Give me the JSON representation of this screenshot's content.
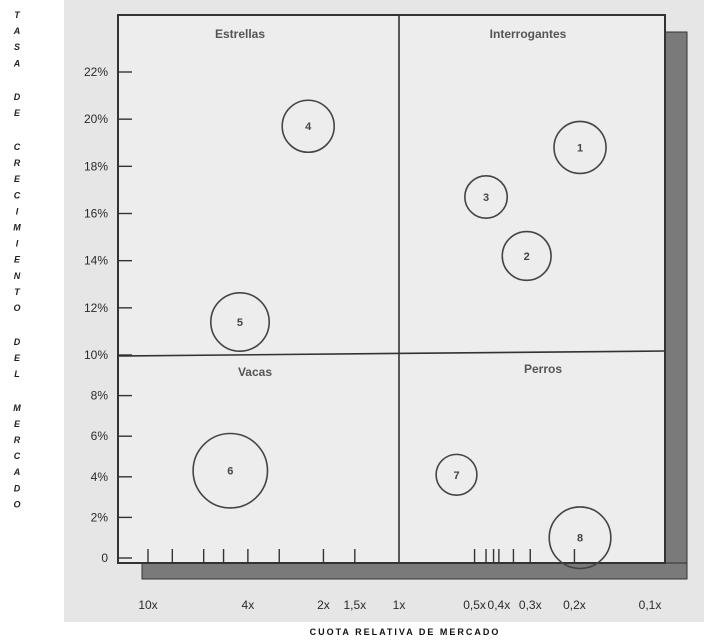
{
  "chart_data": {
    "type": "scatter",
    "title": "",
    "ylabel": "TASA DE CRECIMIENTO DEL MERCADO",
    "xlabel": "CUOTA RELATIVA DE MERCADO",
    "y_ticks": [
      {
        "value": 0,
        "label": "0"
      },
      {
        "value": 2,
        "label": "2%"
      },
      {
        "value": 4,
        "label": "4%"
      },
      {
        "value": 6,
        "label": "6%"
      },
      {
        "value": 8,
        "label": "8%"
      },
      {
        "value": 10,
        "label": "10%"
      },
      {
        "value": 12,
        "label": "12%"
      },
      {
        "value": 14,
        "label": "14%"
      },
      {
        "value": 16,
        "label": "16%"
      },
      {
        "value": 18,
        "label": "18%"
      },
      {
        "value": 20,
        "label": "20%"
      },
      {
        "value": 22,
        "label": "22%"
      }
    ],
    "x_scale": "log-reversed",
    "xlim": [
      0.075,
      12
    ],
    "x_ticks": [
      {
        "value": 10,
        "label": "10x"
      },
      {
        "value": 4,
        "label": "4x"
      },
      {
        "value": 2,
        "label": "2x"
      },
      {
        "value": 1.5,
        "label": "1,5x"
      },
      {
        "value": 1,
        "label": "1x"
      },
      {
        "value": 0.5,
        "label": "0,5x"
      },
      {
        "value": 0.4,
        "label": "0,4x"
      },
      {
        "value": 0.3,
        "label": "0,3x"
      },
      {
        "value": 0.2,
        "label": "0,2x"
      },
      {
        "value": 0.1,
        "label": "0,1x"
      }
    ],
    "x_minor_ticks": [
      10,
      8,
      6,
      5,
      4,
      3,
      2,
      1.5,
      0.5,
      0.45,
      0.42,
      0.4,
      0.35,
      0.3,
      0.2
    ],
    "quadrants": [
      {
        "label": "Estrellas"
      },
      {
        "label": "Interrogantes"
      },
      {
        "label": "Vacas"
      },
      {
        "label": "Perros"
      }
    ],
    "divider_x": 1,
    "divider_y": 10,
    "bubbles": [
      {
        "label": "1",
        "x": 0.19,
        "y": 18.8,
        "size": 0.2
      },
      {
        "label": "2",
        "x": 0.31,
        "y": 14.2,
        "size": 0.18
      },
      {
        "label": "3",
        "x": 0.45,
        "y": 16.7,
        "size": 0.14
      },
      {
        "label": "4",
        "x": 2.3,
        "y": 19.7,
        "size": 0.2
      },
      {
        "label": "5",
        "x": 4.3,
        "y": 11.4,
        "size": 0.24
      },
      {
        "label": "6",
        "x": 4.7,
        "y": 4.3,
        "size": 0.34
      },
      {
        "label": "7",
        "x": 0.59,
        "y": 4.1,
        "size": 0.13
      },
      {
        "label": "8",
        "x": 0.19,
        "y": 1.0,
        "size": 0.26
      }
    ],
    "colors": {
      "frame": "#333333",
      "shadow": "#7a7a7a",
      "bubble_stroke": "#444444",
      "background": "#e4e4e4"
    }
  }
}
